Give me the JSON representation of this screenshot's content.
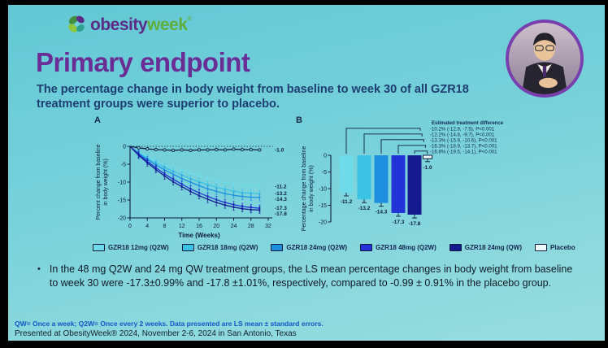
{
  "header": {
    "logo": {
      "word1": "obesity",
      "word2": "week",
      "mark": "®"
    },
    "title": "Primary endpoint",
    "subtitle": "The percentage change in body weight from baseline to week 30 of all GZR18 treatment groups were superior to placebo."
  },
  "panels": {
    "a": "A",
    "b": "B"
  },
  "chart_data": [
    {
      "id": "weight-change-line",
      "type": "line",
      "title": "",
      "xlabel": "Time (Weeks)",
      "ylabel": [
        "Percent change from baseline",
        "in body weight (%)"
      ],
      "xlim": [
        0,
        32
      ],
      "ylim": [
        -20,
        0
      ],
      "xticks": [
        0,
        4,
        8,
        12,
        16,
        20,
        24,
        28,
        32
      ],
      "yticks": [
        0,
        -5,
        -10,
        -15,
        -20
      ],
      "grid": false,
      "axis_color": "#0e1b3e",
      "zero_line": "dotted",
      "x": [
        0,
        2,
        4,
        6,
        8,
        10,
        12,
        14,
        16,
        18,
        20,
        22,
        24,
        26,
        28,
        30
      ],
      "series": [
        {
          "name": "GZR18 12mg (Q2W)",
          "color": "#6FDAEA",
          "marker": "square",
          "err": 0.9,
          "end_label": "-11.2",
          "values": [
            0,
            -1.6,
            -2.9,
            -4.1,
            -5.1,
            -6.0,
            -6.8,
            -7.6,
            -8.3,
            -9.0,
            -9.6,
            -10.1,
            -10.5,
            -10.8,
            -11.0,
            -11.2
          ]
        },
        {
          "name": "GZR18 18mg (Q2W)",
          "color": "#3BC2E5",
          "marker": "square",
          "err": 0.9,
          "end_label": "-13.2",
          "values": [
            0,
            -1.8,
            -3.3,
            -4.7,
            -5.9,
            -7.0,
            -8.0,
            -9.0,
            -9.9,
            -10.7,
            -11.4,
            -12.0,
            -12.5,
            -12.9,
            -13.1,
            -13.2
          ]
        },
        {
          "name": "GZR18 24mg (Q2W)",
          "color": "#1E8EDE",
          "marker": "square",
          "err": 0.9,
          "end_label": "-14.3",
          "values": [
            0,
            -2.0,
            -3.7,
            -5.2,
            -6.6,
            -7.8,
            -9.0,
            -10.0,
            -11.0,
            -11.9,
            -12.6,
            -13.2,
            -13.7,
            -14.0,
            -14.2,
            -14.3
          ]
        },
        {
          "name": "GZR18 48mg (Q2W)",
          "color": "#2433D8",
          "marker": "square",
          "err": 0.9,
          "end_label": "-17.3",
          "values": [
            0,
            -2.2,
            -4.2,
            -6.0,
            -7.7,
            -9.2,
            -10.6,
            -11.9,
            -13.0,
            -14.0,
            -14.9,
            -15.7,
            -16.3,
            -16.8,
            -17.1,
            -17.3
          ]
        },
        {
          "name": "GZR18 24mg (QW)",
          "color": "#161A8F",
          "marker": "square",
          "err": 0.9,
          "end_label": "-17.8",
          "values": [
            0,
            -2.5,
            -4.6,
            -6.5,
            -8.3,
            -9.9,
            -11.3,
            -12.6,
            -13.8,
            -14.8,
            -15.7,
            -16.4,
            -17.0,
            -17.4,
            -17.7,
            -17.8
          ]
        },
        {
          "name": "Placebo",
          "color": "#0e1b3e",
          "marker": "open-circle",
          "err": 0.35,
          "end_label": "-1.0",
          "values": [
            0,
            -0.4,
            -0.7,
            -0.9,
            -1.0,
            -1.1,
            -1.0,
            -1.1,
            -1.0,
            -1.0,
            -0.9,
            -1.0,
            -0.8,
            -0.9,
            -0.9,
            -1.0
          ]
        }
      ]
    },
    {
      "id": "weight-change-bars",
      "type": "bar",
      "title": "",
      "ylabel": [
        "Percentage change from baseline",
        "in body weight (%)"
      ],
      "ylim": [
        -20,
        0
      ],
      "yticks": [
        0,
        -5,
        -10,
        -15,
        -20
      ],
      "grid": false,
      "axis_color": "#0e1b3e",
      "bars": [
        {
          "label": "GZR18 12mg (Q2W)",
          "value": -11.2,
          "se": 1.0,
          "color": "#6FDAEA",
          "value_label": "-11.2"
        },
        {
          "label": "GZR18 18mg (Q2W)",
          "value": -13.2,
          "se": 1.0,
          "color": "#3BC2E5",
          "value_label": "-13.2"
        },
        {
          "label": "GZR18 24mg (Q2W)",
          "value": -14.3,
          "se": 1.0,
          "color": "#1E8EDE",
          "value_label": "-14.3"
        },
        {
          "label": "GZR18 48mg (Q2W)",
          "value": -17.3,
          "se": 0.99,
          "color": "#2433D8",
          "value_label": "-17.3"
        },
        {
          "label": "GZR18 24mg (QW)",
          "value": -17.8,
          "se": 1.01,
          "color": "#161A8F",
          "value_label": "-17.8"
        },
        {
          "label": "Placebo",
          "value": -1.0,
          "se": 0.91,
          "color": "open",
          "value_label": "-1.0"
        }
      ],
      "treatment_difference": {
        "title": "Estimated treatment difference",
        "text_color": "#0f2a56",
        "lines": [
          "-10.2% (-12.9, -7.5), P<0.001",
          "-12.2% (-14.8, -9.7), P<0.001",
          "-13.3% (-15.9, -10.6), P<0.001",
          "-16.3% (-18.9, -13.7), P<0.001",
          "-16.8% (-19.5, -14.1), P<0.001"
        ]
      }
    }
  ],
  "legend": {
    "items": [
      {
        "label": "GZR18 12mg (Q2W)",
        "color": "#6FDAEA"
      },
      {
        "label": "GZR18 18mg (Q2W)",
        "color": "#3BC2E5"
      },
      {
        "label": "GZR18 24mg (Q2W)",
        "color": "#1E8EDE"
      },
      {
        "label": "GZR18 48mg (Q2W)",
        "color": "#2433D8"
      },
      {
        "label": "GZR18 24mg (QW)",
        "color": "#161A8F"
      },
      {
        "label": "Placebo",
        "color": "open"
      }
    ]
  },
  "bullet": {
    "marker": "•",
    "text": "In the 48 mg Q2W and 24 mg QW treatment groups, the LS mean percentage changes in body weight from baseline to week 30 were -17.3±0.99% and -17.8 ±1.01%, respectively, compared to -0.99 ± 0.91% in the placebo group."
  },
  "footer": {
    "line1": "QW= Once a week; Q2W= Once every 2 weeks. Data presented are LS mean ± standard errors.",
    "line2": "Presented at ObesityWeek® 2024, November 2-6, 2024 in San Antonio, Texas"
  },
  "colors": {
    "background_teal": "#74d0da",
    "title_purple": "#6a2d96",
    "subtitle_navy": "#1e3d70",
    "logo_purple": "#5b2c87",
    "logo_green": "#5fae3c",
    "axis_navy": "#0e1b3e",
    "footer_blue": "#1456c8",
    "avatar_ring_purple": "#7a3fae"
  }
}
